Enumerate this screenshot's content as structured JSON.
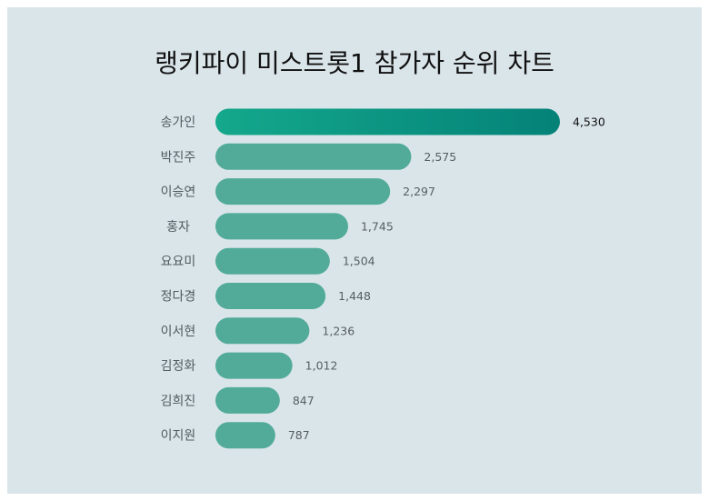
{
  "title": "랭키파이 미스트롯1 참가자 순위 차트",
  "colors": {
    "background": "#dae5ea",
    "bar": "#52ab99",
    "top_bar_start": "#14a88c",
    "top_bar_end": "#048278"
  },
  "chart_data": {
    "type": "bar",
    "orientation": "horizontal",
    "title": "랭키파이 미스트롯1 참가자 순위 차트",
    "categories": [
      "송가인",
      "박진주",
      "이승연",
      "홍자",
      "요요미",
      "정다경",
      "이서현",
      "김정화",
      "김희진",
      "이지원"
    ],
    "values": [
      4530,
      2575,
      2297,
      1745,
      1504,
      1448,
      1236,
      1012,
      847,
      787
    ],
    "value_labels": [
      "4,530",
      "2,575",
      "2,297",
      "1,745",
      "1,504",
      "1,448",
      "1,236",
      "1,012",
      "847",
      "787"
    ],
    "xlim": [
      0,
      4530
    ],
    "grid": false,
    "legend": "none"
  }
}
